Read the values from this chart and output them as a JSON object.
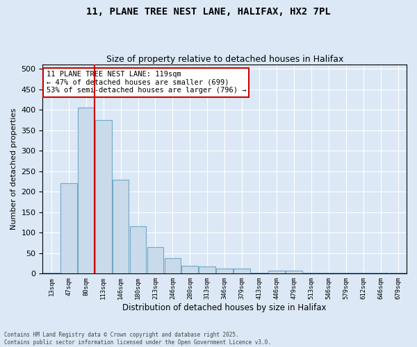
{
  "title1": "11, PLANE TREE NEST LANE, HALIFAX, HX2 7PL",
  "title2": "Size of property relative to detached houses in Halifax",
  "xlabel": "Distribution of detached houses by size in Halifax",
  "ylabel": "Number of detached properties",
  "annotation_line1": "11 PLANE TREE NEST LANE: 119sqm",
  "annotation_line2": "← 47% of detached houses are smaller (699)",
  "annotation_line3": "53% of semi-detached houses are larger (796) →",
  "bin_labels": [
    "13sqm",
    "47sqm",
    "80sqm",
    "113sqm",
    "146sqm",
    "180sqm",
    "213sqm",
    "246sqm",
    "280sqm",
    "313sqm",
    "346sqm",
    "379sqm",
    "413sqm",
    "446sqm",
    "479sqm",
    "513sqm",
    "546sqm",
    "579sqm",
    "612sqm",
    "646sqm",
    "679sqm"
  ],
  "heights": [
    2,
    220,
    405,
    375,
    230,
    115,
    65,
    38,
    20,
    18,
    12,
    12,
    2,
    8,
    8,
    2,
    2,
    2,
    2,
    2,
    2
  ],
  "bar_color": "#c9daea",
  "bar_edge_color": "#6fa8c8",
  "marker_index": 3,
  "marker_color": "#cc0000",
  "background_color": "#dce8f5",
  "grid_color": "#ffffff",
  "footer": "Contains HM Land Registry data © Crown copyright and database right 2025.\nContains public sector information licensed under the Open Government Licence v3.0.",
  "ylim": [
    0,
    510
  ],
  "yticks": [
    0,
    50,
    100,
    150,
    200,
    250,
    300,
    350,
    400,
    450,
    500
  ]
}
